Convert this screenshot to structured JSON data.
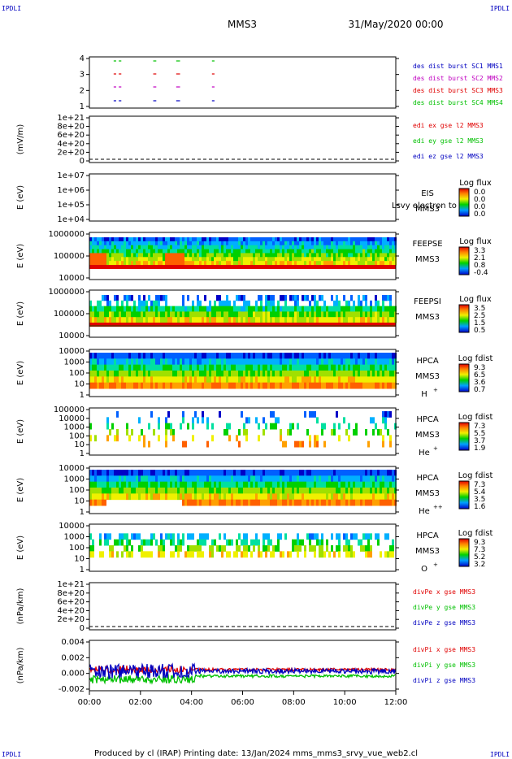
{
  "corners": {
    "tl": "IPDLI",
    "tr": "IPDLI",
    "bl": "IPDLI",
    "br": "IPDLI"
  },
  "header": {
    "mission": "MMS3",
    "date": "31/May/2020 00:00"
  },
  "footer": "Produced by cl (IRAP)   Printing date: 13/Jan/2024   mms_mms3_srvy_vue_web2.cl",
  "chart_data": {
    "type": "heatmap",
    "x_ticks": [
      "00:00",
      "02:00",
      "04:00",
      "06:00",
      "08:00",
      "10:00",
      "12:00"
    ],
    "x_range_hours": [
      0,
      12
    ],
    "panels": [
      {
        "id": "burst",
        "type": "timeline",
        "ylabel": "",
        "yticks": [
          "4",
          "3",
          "2",
          "1"
        ],
        "intervals_hours": [
          [
            0.95,
            1.05
          ],
          [
            1.15,
            1.25
          ],
          [
            2.5,
            2.62
          ],
          [
            3.4,
            3.55
          ],
          [
            4.8,
            4.9
          ]
        ],
        "legend": [
          {
            "text": "des dist burst SC1 MMS1",
            "color": "#0000c0"
          },
          {
            "text": "des dist burst SC2 MMS2",
            "color": "#c000c0"
          },
          {
            "text": "des dist burst SC3 MMS3",
            "color": "#e00000"
          },
          {
            "text": "des dist burst SC4 MMS4",
            "color": "#00c000"
          }
        ]
      },
      {
        "id": "edi",
        "type": "line",
        "ylabel": "(mV/m)",
        "yticks": [
          "1e+21",
          "8e+20",
          "6e+20",
          "4e+20",
          "2e+20",
          "0"
        ],
        "legend": [
          {
            "text": "edi ex gse l2 MMS3",
            "color": "#e00000"
          },
          {
            "text": "edi ey gse l2 MMS3",
            "color": "#00c000"
          },
          {
            "text": "edi ez gse l2 MMS3",
            "color": "#0000c0"
          }
        ]
      },
      {
        "id": "eis",
        "type": "heatmap",
        "ylabel": "E (eV)",
        "yticks": [
          "1e+07",
          "1e+06",
          "1e+05",
          "1e+04"
        ],
        "labels": [
          "EIS",
          "MMS3"
        ],
        "overlay_text": "Lsvy electron to",
        "cbar_title": "Log flux",
        "cbar_ticks": [
          "0.0",
          "0.0",
          "0.0",
          "0.0"
        ]
      },
      {
        "id": "feepse",
        "type": "heatmap",
        "ylabel": "E (eV)",
        "yticks": [
          "1000000",
          "100000",
          "10000"
        ],
        "labels": [
          "FEEPSE",
          "MMS3"
        ],
        "cbar_title": "Log flux",
        "cbar_ticks": [
          "3.3",
          "2.1",
          "0.8",
          "-0.4"
        ]
      },
      {
        "id": "feepsi",
        "type": "heatmap",
        "ylabel": "E (eV)",
        "yticks": [
          "1000000",
          "100000",
          "10000"
        ],
        "labels": [
          "FEEPSI",
          "MMS3"
        ],
        "cbar_title": "Log flux",
        "cbar_ticks": [
          "3.5",
          "2.5",
          "1.5",
          "0.5"
        ]
      },
      {
        "id": "hpca_h",
        "type": "heatmap",
        "ylabel": "E (eV)",
        "yticks": [
          "10000",
          "1000",
          "100",
          "10",
          "1"
        ],
        "labels": [
          "HPCA",
          "MMS3"
        ],
        "species": "H",
        "charge": "+",
        "cbar_title": "Log fdist",
        "cbar_ticks": [
          "9.3",
          "6.5",
          "3.6",
          "0.7"
        ]
      },
      {
        "id": "hpca_he1",
        "type": "heatmap",
        "ylabel": "E (eV)",
        "yticks": [
          "100000",
          "10000",
          "1000",
          "100",
          "10",
          "1"
        ],
        "labels": [
          "HPCA",
          "MMS3"
        ],
        "species": "He",
        "charge": "+",
        "cbar_title": "Log fdist",
        "cbar_ticks": [
          "7.3",
          "5.5",
          "3.7",
          "1.9"
        ]
      },
      {
        "id": "hpca_he2",
        "type": "heatmap",
        "ylabel": "E (eV)",
        "yticks": [
          "10000",
          "1000",
          "100",
          "10",
          "1"
        ],
        "labels": [
          "HPCA",
          "MMS3"
        ],
        "species": "He",
        "charge": "++",
        "cbar_title": "Log fdist",
        "cbar_ticks": [
          "7.3",
          "5.4",
          "3.5",
          "1.6"
        ]
      },
      {
        "id": "hpca_o",
        "type": "heatmap",
        "ylabel": "E (eV)",
        "yticks": [
          "10000",
          "1000",
          "100",
          "10",
          "1"
        ],
        "labels": [
          "HPCA",
          "MMS3"
        ],
        "species": "O",
        "charge": "+",
        "cbar_title": "Log fdist",
        "cbar_ticks": [
          "9.3",
          "7.3",
          "5.2",
          "3.2"
        ]
      },
      {
        "id": "divpe",
        "type": "line",
        "ylabel": "(nPa/km)",
        "yticks": [
          "1e+21",
          "8e+20",
          "6e+20",
          "4e+20",
          "2e+20",
          "0"
        ],
        "legend": [
          {
            "text": "divPe x gse MMS3",
            "color": "#e00000"
          },
          {
            "text": "divPe y gse MMS3",
            "color": "#00c000"
          },
          {
            "text": "divPe z gse MMS3",
            "color": "#0000c0"
          }
        ]
      },
      {
        "id": "divpi",
        "type": "line",
        "ylabel": "(nPa/km)",
        "yticks": [
          "0.004",
          "0.002",
          "0.000",
          "-0.002"
        ],
        "legend": [
          {
            "text": "divPi x gse MMS3",
            "color": "#e00000"
          },
          {
            "text": "divPi y gse MMS3",
            "color": "#00c000"
          },
          {
            "text": "divPi z gse MMS3",
            "color": "#0000c0"
          }
        ]
      }
    ]
  }
}
